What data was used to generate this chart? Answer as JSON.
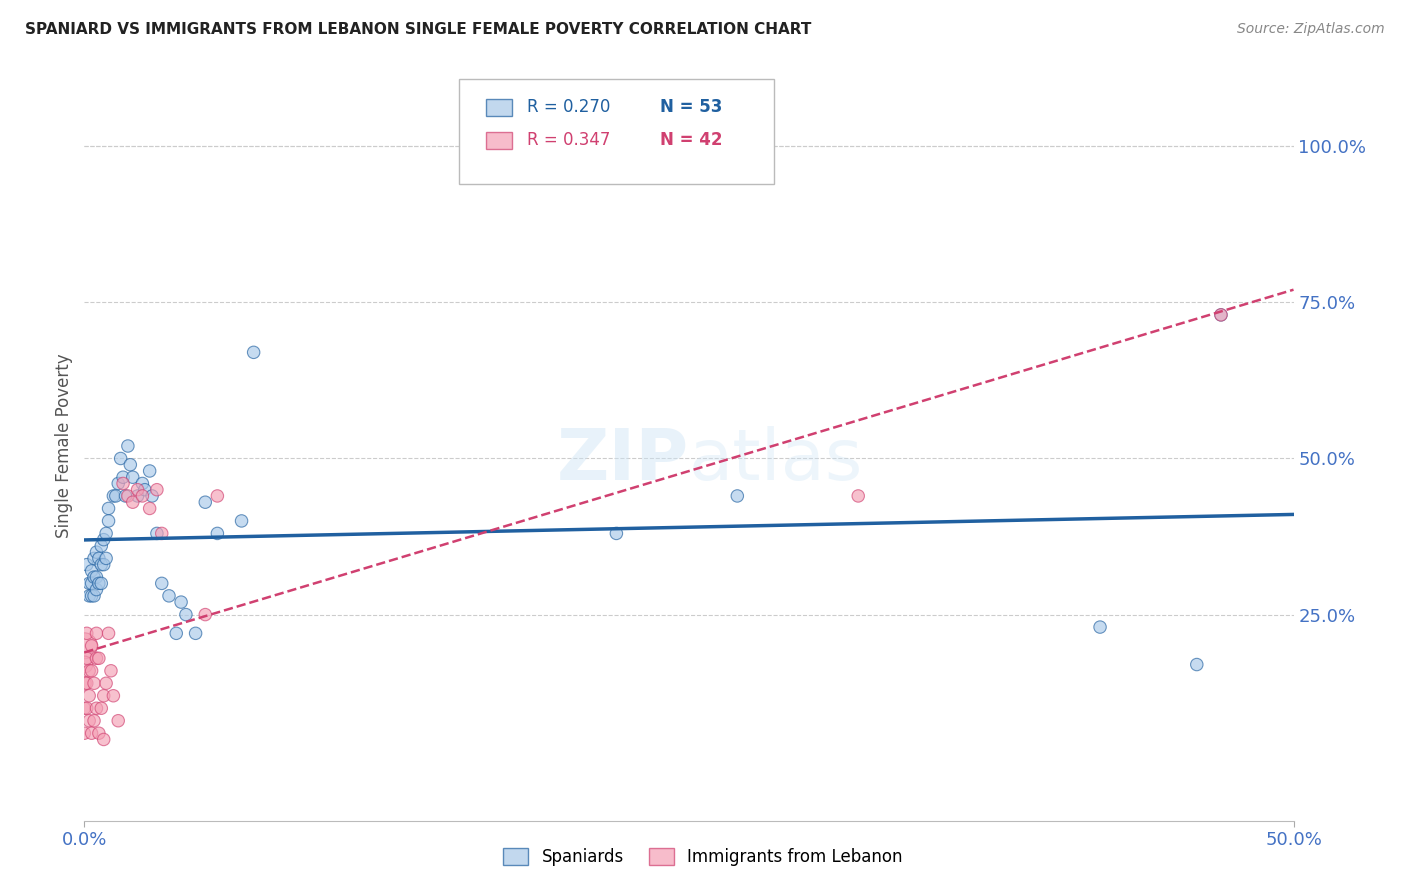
{
  "title": "SPANIARD VS IMMIGRANTS FROM LEBANON SINGLE FEMALE POVERTY CORRELATION CHART",
  "source": "Source: ZipAtlas.com",
  "ylabel": "Single Female Poverty",
  "ytick_labels": [
    "100.0%",
    "75.0%",
    "50.0%",
    "25.0%"
  ],
  "ytick_positions": [
    1.0,
    0.75,
    0.5,
    0.25
  ],
  "xmin": 0.0,
  "xmax": 0.5,
  "ymin": -0.08,
  "ymax": 1.12,
  "legend_r1": "R = 0.270",
  "legend_n1": "N = 53",
  "legend_r2": "R = 0.347",
  "legend_n2": "N = 42",
  "color_blue": "#a8c8e8",
  "color_pink": "#f4a0b5",
  "color_line_blue": "#2060a0",
  "color_line_pink": "#d04070",
  "color_yticks": "#4472c4",
  "color_xtick_labels": "#4472c4",
  "spaniards_x": [
    0.001,
    0.002,
    0.002,
    0.003,
    0.003,
    0.003,
    0.004,
    0.004,
    0.004,
    0.005,
    0.005,
    0.005,
    0.006,
    0.006,
    0.007,
    0.007,
    0.007,
    0.008,
    0.008,
    0.009,
    0.009,
    0.01,
    0.01,
    0.012,
    0.013,
    0.014,
    0.015,
    0.016,
    0.017,
    0.018,
    0.019,
    0.02,
    0.022,
    0.024,
    0.025,
    0.027,
    0.028,
    0.03,
    0.032,
    0.035,
    0.038,
    0.04,
    0.042,
    0.046,
    0.05,
    0.055,
    0.065,
    0.07,
    0.22,
    0.27,
    0.42,
    0.46,
    0.47
  ],
  "spaniards_y": [
    0.33,
    0.3,
    0.28,
    0.32,
    0.3,
    0.28,
    0.34,
    0.31,
    0.28,
    0.35,
    0.31,
    0.29,
    0.34,
    0.3,
    0.36,
    0.33,
    0.3,
    0.37,
    0.33,
    0.38,
    0.34,
    0.42,
    0.4,
    0.44,
    0.44,
    0.46,
    0.5,
    0.47,
    0.44,
    0.52,
    0.49,
    0.47,
    0.44,
    0.46,
    0.45,
    0.48,
    0.44,
    0.38,
    0.3,
    0.28,
    0.22,
    0.27,
    0.25,
    0.22,
    0.43,
    0.38,
    0.4,
    0.67,
    0.38,
    0.44,
    0.23,
    0.17,
    0.73
  ],
  "spaniards_size": [
    80,
    80,
    80,
    80,
    80,
    80,
    80,
    80,
    80,
    80,
    80,
    80,
    80,
    80,
    80,
    80,
    80,
    80,
    80,
    80,
    80,
    80,
    80,
    80,
    80,
    80,
    80,
    80,
    80,
    80,
    80,
    80,
    80,
    80,
    80,
    80,
    80,
    80,
    80,
    80,
    80,
    80,
    80,
    80,
    80,
    80,
    80,
    80,
    80,
    80,
    80,
    80,
    80
  ],
  "lebanon_x": [
    0.0,
    0.0,
    0.0,
    0.0,
    0.0,
    0.001,
    0.001,
    0.001,
    0.001,
    0.002,
    0.002,
    0.002,
    0.003,
    0.003,
    0.003,
    0.004,
    0.004,
    0.005,
    0.005,
    0.005,
    0.006,
    0.006,
    0.007,
    0.008,
    0.008,
    0.009,
    0.01,
    0.011,
    0.012,
    0.014,
    0.016,
    0.018,
    0.02,
    0.022,
    0.024,
    0.027,
    0.03,
    0.032,
    0.05,
    0.055,
    0.32,
    0.47
  ],
  "lebanon_y": [
    0.2,
    0.17,
    0.14,
    0.1,
    0.06,
    0.22,
    0.18,
    0.14,
    0.1,
    0.16,
    0.12,
    0.08,
    0.2,
    0.16,
    0.06,
    0.14,
    0.08,
    0.22,
    0.18,
    0.1,
    0.18,
    0.06,
    0.1,
    0.12,
    0.05,
    0.14,
    0.22,
    0.16,
    0.12,
    0.08,
    0.46,
    0.44,
    0.43,
    0.45,
    0.44,
    0.42,
    0.45,
    0.38,
    0.25,
    0.44,
    0.44,
    0.73
  ],
  "lebanon_size": [
    350,
    150,
    100,
    80,
    80,
    80,
    80,
    80,
    80,
    80,
    80,
    80,
    80,
    80,
    80,
    80,
    80,
    80,
    80,
    80,
    80,
    80,
    80,
    80,
    80,
    80,
    80,
    80,
    80,
    80,
    80,
    80,
    80,
    80,
    80,
    80,
    80,
    80,
    80,
    80,
    80,
    80
  ]
}
